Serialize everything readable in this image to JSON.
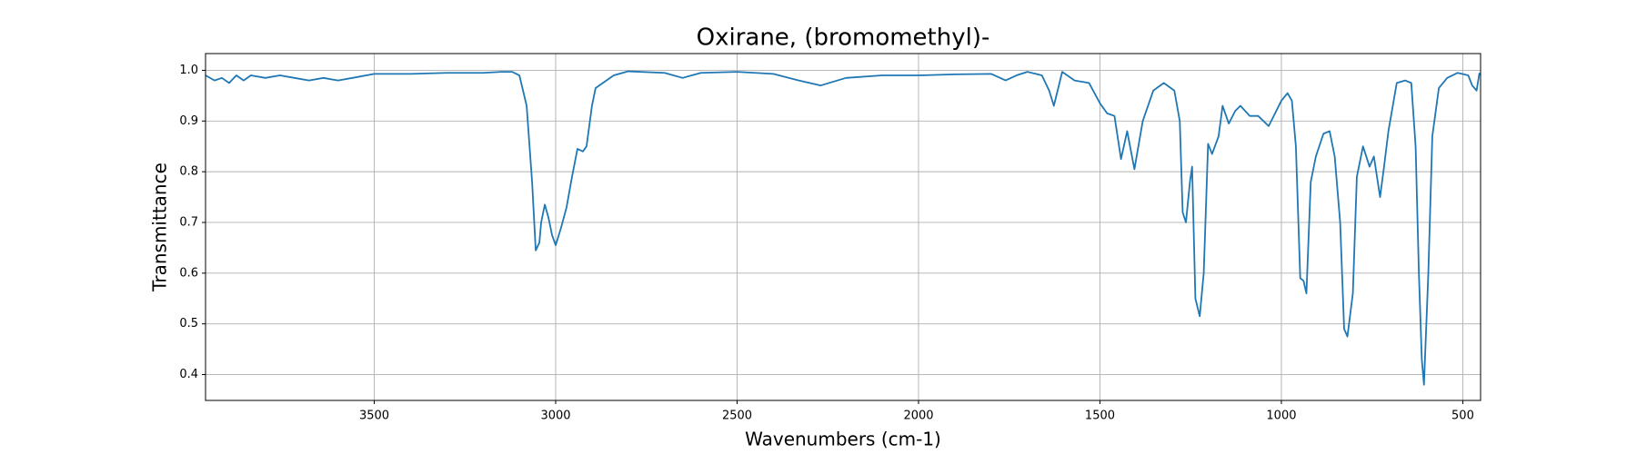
{
  "chart_data": {
    "type": "line",
    "title": "Oxirane, (bromomethyl)-",
    "x_label": "Wavenumbers (cm-1)",
    "y_label": "Transmittance",
    "xlim": [
      3965,
      451
    ],
    "ylim": [
      0.349,
      1.033
    ],
    "xticks": [
      3500,
      3000,
      2500,
      2000,
      1500,
      1000,
      500
    ],
    "yticks": [
      0.4,
      0.5,
      0.6,
      0.7,
      0.8,
      0.9,
      {
        "value": 1,
        "label": "1.0"
      }
    ],
    "grid": true,
    "series": [
      {
        "name": "Transmittance",
        "color": "#1f77b4",
        "x": [
          3965,
          3940,
          3920,
          3900,
          3880,
          3860,
          3840,
          3800,
          3760,
          3720,
          3680,
          3640,
          3600,
          3560,
          3500,
          3400,
          3300,
          3200,
          3150,
          3120,
          3100,
          3080,
          3065,
          3055,
          3045,
          3040,
          3030,
          3020,
          3010,
          3000,
          2985,
          2970,
          2955,
          2940,
          2925,
          2915,
          2900,
          2890,
          2870,
          2840,
          2800,
          2700,
          2650,
          2600,
          2500,
          2400,
          2330,
          2270,
          2200,
          2100,
          2000,
          1900,
          1800,
          1760,
          1730,
          1700,
          1660,
          1640,
          1627,
          1604,
          1570,
          1530,
          1500,
          1480,
          1460,
          1442,
          1425,
          1405,
          1382,
          1353,
          1324,
          1295,
          1280,
          1272,
          1263,
          1252,
          1246,
          1237,
          1225,
          1214,
          1202,
          1191,
          1173,
          1162,
          1145,
          1127,
          1113,
          1087,
          1064,
          1035,
          1000,
          983,
          971,
          960,
          948,
          939,
          931,
          919,
          905,
          884,
          867,
          853,
          838,
          827,
          818,
          803,
          792,
          775,
          757,
          745,
          728,
          717,
          705,
          682,
          659,
          642,
          630,
          621,
          613,
          607,
          595,
          584,
          566,
          543,
          514,
          485,
          474,
          462,
          454
        ],
        "values": [
          0.99,
          0.98,
          0.985,
          0.975,
          0.99,
          0.98,
          0.99,
          0.985,
          0.99,
          0.985,
          0.98,
          0.985,
          0.98,
          0.985,
          0.993,
          0.993,
          0.995,
          0.995,
          0.997,
          0.997,
          0.99,
          0.93,
          0.78,
          0.645,
          0.66,
          0.7,
          0.735,
          0.71,
          0.675,
          0.655,
          0.69,
          0.73,
          0.79,
          0.845,
          0.84,
          0.85,
          0.93,
          0.965,
          0.975,
          0.99,
          0.998,
          0.995,
          0.985,
          0.995,
          0.997,
          0.993,
          0.98,
          0.97,
          0.985,
          0.99,
          0.99,
          0.992,
          0.993,
          0.98,
          0.99,
          0.997,
          0.99,
          0.96,
          0.93,
          0.997,
          0.98,
          0.975,
          0.935,
          0.915,
          0.91,
          0.825,
          0.88,
          0.805,
          0.9,
          0.96,
          0.975,
          0.96,
          0.9,
          0.72,
          0.7,
          0.78,
          0.81,
          0.55,
          0.515,
          0.6,
          0.855,
          0.835,
          0.87,
          0.93,
          0.895,
          0.92,
          0.93,
          0.91,
          0.91,
          0.89,
          0.94,
          0.955,
          0.94,
          0.85,
          0.59,
          0.585,
          0.56,
          0.78,
          0.83,
          0.875,
          0.88,
          0.83,
          0.7,
          0.49,
          0.475,
          0.56,
          0.79,
          0.85,
          0.81,
          0.83,
          0.75,
          0.81,
          0.88,
          0.975,
          0.98,
          0.975,
          0.85,
          0.6,
          0.43,
          0.38,
          0.6,
          0.87,
          0.965,
          0.985,
          0.995,
          0.99,
          0.97,
          0.96,
          0.995
        ]
      }
    ]
  }
}
